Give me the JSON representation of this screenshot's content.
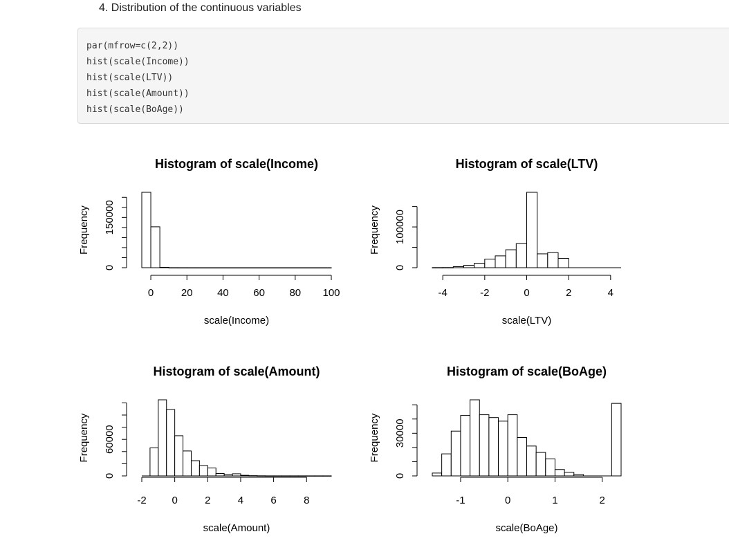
{
  "heading": "4. Distribution of the continuous variables",
  "code": [
    "par(mfrow=c(2,2))",
    "hist(scale(Income))",
    "hist(scale(LTV))",
    "hist(scale(Amount))",
    "hist(scale(BoAge))"
  ],
  "chart_data": [
    {
      "type": "bar",
      "title": "Histogram of scale(Income)",
      "xlabel": "scale(Income)",
      "ylabel": "Frequency",
      "xlim": [
        -5,
        100
      ],
      "x_ticks": [
        0,
        20,
        40,
        60,
        80,
        100
      ],
      "y_ticks": [
        0,
        150000
      ],
      "y_minor_ticks": [
        0,
        30000,
        60000,
        90000,
        120000,
        150000,
        180000,
        210000
      ],
      "bin_edges": [
        -5,
        0,
        5,
        10,
        15,
        20,
        25,
        30,
        35,
        40,
        45,
        50,
        55,
        60,
        65,
        70,
        75,
        80,
        85,
        90,
        95,
        100
      ],
      "values": [
        225000,
        122000,
        1000,
        150,
        80,
        40,
        20,
        10,
        10,
        5,
        5,
        5,
        5,
        5,
        5,
        5,
        5,
        5,
        5,
        5,
        5
      ]
    },
    {
      "type": "bar",
      "title": "Histogram of scale(LTV)",
      "xlabel": "scale(LTV)",
      "ylabel": "Frequency",
      "xlim": [
        -4.5,
        4.5
      ],
      "x_ticks": [
        -4,
        -2,
        0,
        2,
        4
      ],
      "y_ticks": [
        0,
        100000
      ],
      "y_minor_ticks": [
        0,
        50000,
        100000,
        150000
      ],
      "bin_edges": [
        -4.5,
        -4,
        -3.5,
        -3,
        -2.5,
        -2,
        -1.5,
        -1,
        -0.5,
        0,
        0.5,
        1,
        1.5,
        2,
        2.5,
        3,
        3.5,
        4,
        4.5
      ],
      "values": [
        300,
        400,
        2500,
        6000,
        11000,
        21000,
        29000,
        44000,
        59000,
        185000,
        34000,
        37000,
        23000,
        0,
        0,
        0,
        0,
        0
      ]
    },
    {
      "type": "bar",
      "title": "Histogram of scale(Amount)",
      "xlabel": "scale(Amount)",
      "ylabel": "Frequency",
      "xlim": [
        -2,
        9.5
      ],
      "x_ticks": [
        -2,
        0,
        2,
        4,
        6,
        8
      ],
      "y_ticks": [
        0,
        60000
      ],
      "y_minor_ticks": [
        0,
        20000,
        40000,
        60000,
        80000,
        100000,
        120000
      ],
      "bin_edges": [
        -2,
        -1.5,
        -1,
        -0.5,
        0,
        0.5,
        1,
        1.5,
        2,
        2.5,
        3,
        3.5,
        4,
        4.5,
        5,
        5.5,
        6,
        6.5,
        7,
        7.5,
        8,
        8.5,
        9,
        9.5
      ],
      "values": [
        0,
        46000,
        125000,
        109000,
        66000,
        41000,
        25000,
        17000,
        13000,
        4000,
        2500,
        3500,
        1000,
        400,
        200,
        100,
        100,
        100,
        100,
        100,
        100,
        100,
        100
      ]
    },
    {
      "type": "bar",
      "title": "Histogram of scale(BoAge)",
      "xlabel": "scale(BoAge)",
      "ylabel": "Frequency",
      "xlim": [
        -1.6,
        2.4
      ],
      "x_ticks": [
        -1,
        0,
        1,
        2
      ],
      "y_ticks": [
        0,
        30000
      ],
      "y_minor_ticks": [
        0,
        10000,
        20000,
        30000,
        40000,
        50000
      ],
      "bin_edges": [
        -1.6,
        -1.4,
        -1.2,
        -1.0,
        -0.8,
        -0.6,
        -0.4,
        -0.2,
        0,
        0.2,
        0.4,
        0.6,
        0.8,
        1.0,
        1.2,
        1.4,
        1.6,
        1.8,
        2.0,
        2.2,
        2.4
      ],
      "values": [
        2000,
        15500,
        31500,
        42500,
        53500,
        43000,
        41000,
        38500,
        43000,
        27000,
        21000,
        16500,
        12000,
        4500,
        2500,
        1000,
        0,
        0,
        0,
        51000
      ]
    }
  ]
}
